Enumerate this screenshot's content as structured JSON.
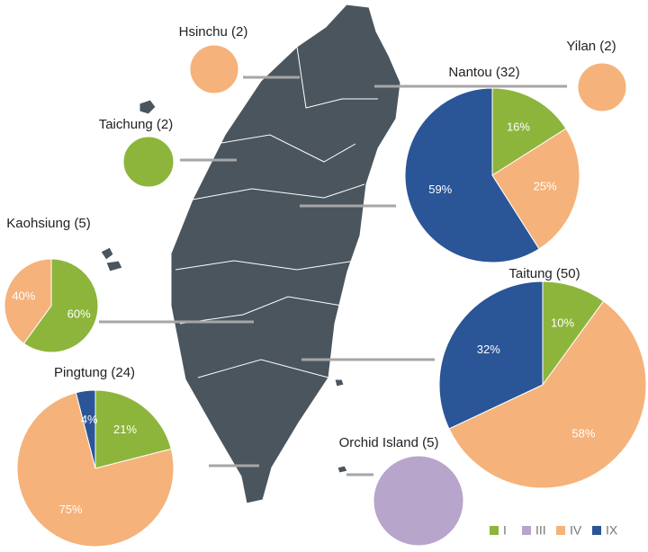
{
  "chart_data": [
    {
      "type": "pie",
      "title": "Hsinchu (2)",
      "categories": [
        "IV"
      ],
      "values": [
        100
      ],
      "colors": [
        "#f5b27a"
      ]
    },
    {
      "type": "pie",
      "title": "Yilan (2)",
      "categories": [
        "IV"
      ],
      "values": [
        100
      ],
      "colors": [
        "#f5b27a"
      ]
    },
    {
      "type": "pie",
      "title": "Taichung (2)",
      "categories": [
        "I"
      ],
      "values": [
        100
      ],
      "colors": [
        "#8db53c"
      ]
    },
    {
      "type": "pie",
      "title": "Nantou (32)",
      "categories": [
        "I",
        "IV",
        "IX"
      ],
      "values": [
        16,
        25,
        59
      ],
      "value_labels": [
        "16%",
        "25%",
        "59%"
      ],
      "colors": [
        "#8db53c",
        "#f5b27a",
        "#2a5597"
      ]
    },
    {
      "type": "pie",
      "title": "Kaohsiung (5)",
      "categories": [
        "I",
        "IV"
      ],
      "values": [
        60,
        40
      ],
      "value_labels": [
        "60%",
        "40%"
      ],
      "colors": [
        "#8db53c",
        "#f5b27a"
      ]
    },
    {
      "type": "pie",
      "title": "Taitung (50)",
      "categories": [
        "I",
        "IV",
        "IX"
      ],
      "values": [
        10,
        58,
        32
      ],
      "value_labels": [
        "10%",
        "58%",
        "32%"
      ],
      "colors": [
        "#8db53c",
        "#f5b27a",
        "#2a5597"
      ]
    },
    {
      "type": "pie",
      "title": "Pingtung (24)",
      "categories": [
        "I",
        "IV",
        "IX"
      ],
      "values": [
        21,
        75,
        4
      ],
      "value_labels": [
        "21%",
        "75%",
        "4%"
      ],
      "colors": [
        "#8db53c",
        "#f5b27a",
        "#2a5597"
      ]
    },
    {
      "type": "pie",
      "title": "Orchid Island (5)",
      "categories": [
        "III"
      ],
      "values": [
        100
      ],
      "colors": [
        "#b7a5cc"
      ]
    }
  ],
  "legend": [
    {
      "name": "I",
      "color": "#8db53c"
    },
    {
      "name": "III",
      "color": "#b7a5cc"
    },
    {
      "name": "IV",
      "color": "#f5b27a"
    },
    {
      "name": "IX",
      "color": "#2a5597"
    }
  ]
}
